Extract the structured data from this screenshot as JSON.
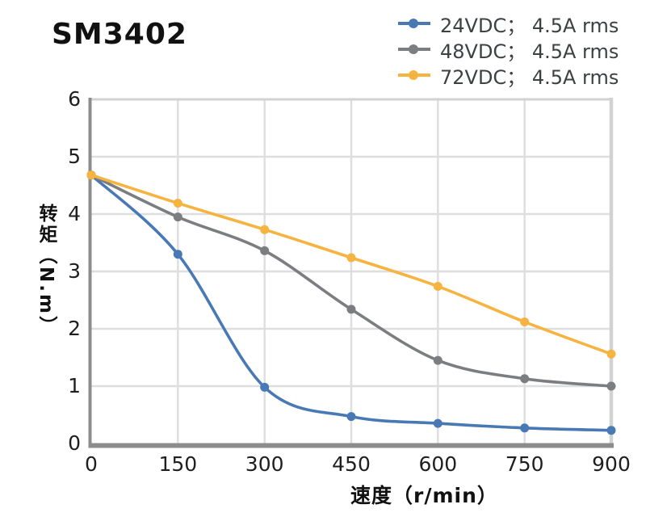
{
  "title": "SM3402",
  "colors": {
    "grid": "#dedede",
    "frame": "#d2d2d2",
    "axis": "#8c8c8c",
    "tick_text": "#1f1f1f",
    "legend_text": "#3e4144",
    "series_blue": "#4979b5",
    "series_gray": "#7b7d80",
    "series_yellow": "#f6b340"
  },
  "chart_data": {
    "type": "line",
    "smooth": true,
    "grid": true,
    "legend_position": "top-right",
    "title": "SM3402",
    "xlabel": "速度（r/min）",
    "ylabel": "转矩（N.m）",
    "xlim": [
      0,
      900
    ],
    "ylim": [
      0,
      6
    ],
    "x_ticks": [
      0,
      150,
      300,
      450,
      600,
      750,
      900
    ],
    "y_ticks": [
      0,
      1,
      2,
      3,
      4,
      5,
      6
    ],
    "x": [
      0,
      150,
      300,
      450,
      600,
      750,
      900
    ],
    "series": [
      {
        "name": "24VDC； 4.5A rms",
        "color": "#4979b5",
        "values": [
          4.68,
          3.3,
          0.98,
          0.47,
          0.35,
          0.27,
          0.23
        ]
      },
      {
        "name": "48VDC； 4.5A rms",
        "color": "#7b7d80",
        "values": [
          4.68,
          3.95,
          3.36,
          2.34,
          1.45,
          1.13,
          1.0
        ]
      },
      {
        "name": "72VDC； 4.5A rms",
        "color": "#f6b340",
        "values": [
          4.68,
          4.19,
          3.73,
          3.24,
          2.74,
          2.12,
          1.56
        ]
      }
    ]
  }
}
